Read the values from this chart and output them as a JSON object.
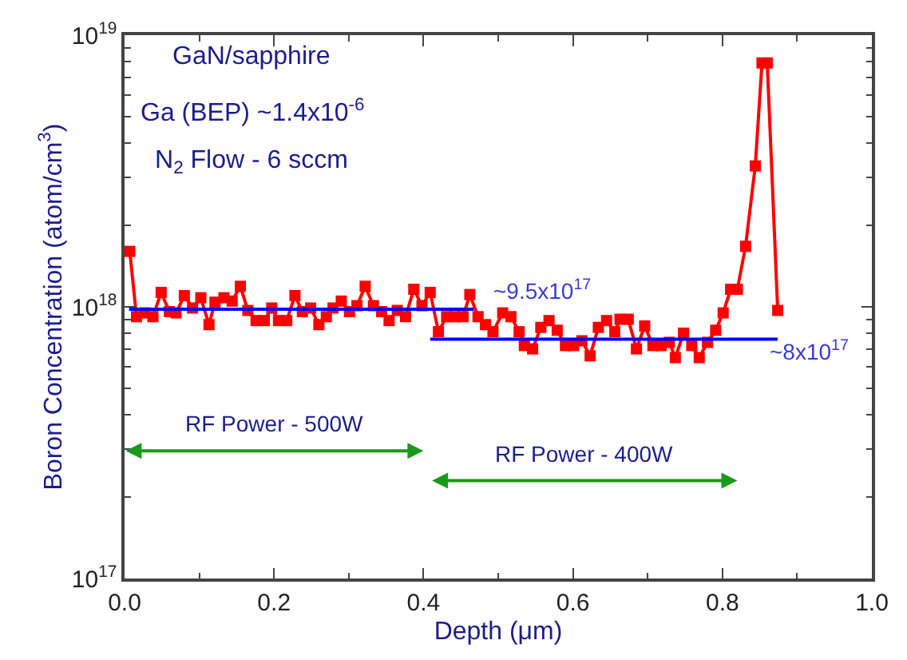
{
  "chart_data": {
    "type": "line",
    "xlabel": "Depth (μm)",
    "ylabel": "Boron Concentration (atom/cm$^{3}$)",
    "xlim": [
      0,
      1
    ],
    "xticks": [
      {
        "value": 0,
        "label": "0.0"
      },
      0.2,
      0.4,
      0.6,
      0.8,
      {
        "value": 1,
        "label": "1.0"
      }
    ],
    "ylim": [
      1e+17,
      1e+19
    ],
    "yticks": [
      {
        "value": 1e+17,
        "label": "10$^{17}$"
      },
      {
        "value": 1e+18,
        "label": "10$^{18}$"
      },
      {
        "value": 1e+19,
        "label": "10$^{19}$"
      }
    ],
    "log": "y",
    "series": [
      {
        "color": "#ff0000",
        "marker": "square",
        "x": [
          0.007,
          0.016,
          0.027,
          0.038,
          0.049,
          0.06,
          0.069,
          0.08,
          0.091,
          0.102,
          0.113,
          0.121,
          0.133,
          0.144,
          0.155,
          0.165,
          0.176,
          0.187,
          0.197,
          0.206,
          0.217,
          0.228,
          0.238,
          0.249,
          0.26,
          0.27,
          0.279,
          0.29,
          0.301,
          0.311,
          0.322,
          0.333,
          0.344,
          0.354,
          0.365,
          0.376,
          0.387,
          0.398,
          0.409,
          0.42,
          0.431,
          0.442,
          0.453,
          0.462,
          0.473,
          0.483,
          0.493,
          0.506,
          0.517,
          0.528,
          0.535,
          0.546,
          0.557,
          0.568,
          0.579,
          0.59,
          0.601,
          0.612,
          0.623,
          0.634,
          0.645,
          0.656,
          0.663,
          0.674,
          0.685,
          0.696,
          0.707,
          0.718,
          0.729,
          0.737,
          0.748,
          0.759,
          0.769,
          0.78,
          0.791,
          0.801,
          0.811,
          0.82,
          0.831,
          0.844,
          0.853,
          0.86,
          0.874
        ],
        "values": [
          1.6e+18,
          9.2e+17,
          9.5e+17,
          9.2e+17,
          1.13e+18,
          9.6e+17,
          9.5e+17,
          1.1e+18,
          9.9e+17,
          1.08e+18,
          8.6e+17,
          1.04e+18,
          1.08e+18,
          1.05e+18,
          1.19e+18,
          9.7e+17,
          8.9e+17,
          8.9e+17,
          9.9e+17,
          8.9e+17,
          8.9e+17,
          1.1e+18,
          9.6e+17,
          9.9e+17,
          8.6e+17,
          9.2e+17,
          9.9e+17,
          1.05e+18,
          9.6e+17,
          1.01e+18,
          1.19e+18,
          1.01e+18,
          9.6e+17,
          8.9e+17,
          9.7e+17,
          9.2e+17,
          1.16e+18,
          1.01e+18,
          1.13e+18,
          8.1e+17,
          9.2e+17,
          9.2e+17,
          9.2e+17,
          1.11e+18,
          9.2e+17,
          8.6e+17,
          8.1e+17,
          9.5e+17,
          9.2e+17,
          8.1e+17,
          7.2e+17,
          7e+17,
          8.4e+17,
          8.9e+17,
          8.2e+17,
          7.2e+17,
          7.2e+17,
          7.5e+17,
          6.6e+17,
          8.4e+17,
          8.9e+17,
          8.1e+17,
          9e+17,
          9e+17,
          7e+17,
          8.5e+17,
          7.2e+17,
          7.2e+17,
          7.4e+17,
          6.5e+17,
          8e+17,
          7.2e+17,
          6.5e+17,
          7.4e+17,
          8.2e+17,
          9.5e+17,
          1.16e+18,
          1.16e+18,
          1.67e+18,
          3.3e+18,
          7.9e+18,
          7.9e+18,
          9.7e+17
        ]
      },
      {
        "color": "#0000ff",
        "marker": "none",
        "x": [
          0.006,
          0.467
        ],
        "values": [
          9.8e+17,
          9.8e+17
        ]
      },
      {
        "color": "#0000ff",
        "marker": "none",
        "x": [
          0.409,
          0.874
        ],
        "values": [
          7.6e+17,
          7.6e+17
        ]
      }
    ],
    "annotations": [
      "GaN/sapphire",
      "Ga (BEP) ~1.4x10$^{-6}$",
      "N$_{2}$ Flow - 6 sccm",
      "RF Power - 500W",
      "RF Power - 400W",
      "~9.5x10$^{17}$",
      "~8x10$^{17}$"
    ]
  }
}
